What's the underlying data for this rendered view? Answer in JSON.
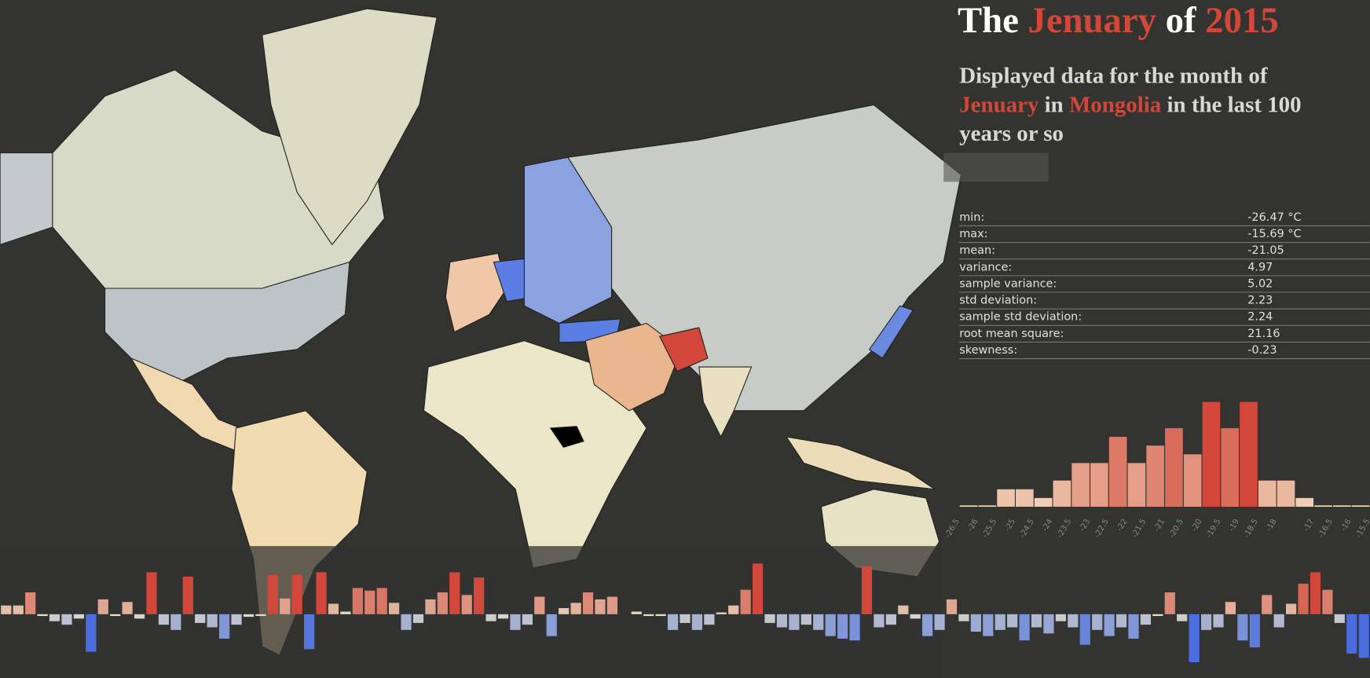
{
  "header": {
    "title": {
      "the": "The",
      "month": "Jenuary",
      "of": "of",
      "year": "2015"
    },
    "subtitle": {
      "lead": "Displayed data for the month of",
      "month": "Jenuary",
      "in": "in",
      "country": "Mongolia",
      "tail": "in the last 100 years or so"
    }
  },
  "stats": {
    "rows": [
      {
        "label": "min:",
        "value": "-26.47 °C"
      },
      {
        "label": "max:",
        "value": "-15.69 °C"
      },
      {
        "label": "mean:",
        "value": "-21.05"
      },
      {
        "label": "variance:",
        "value": "4.97"
      },
      {
        "label": "sample variance:",
        "value": "5.02"
      },
      {
        "label": "std deviation:",
        "value": "2.23"
      },
      {
        "label": "sample std deviation:",
        "value": "2.24"
      },
      {
        "label": "root mean square:",
        "value": "21.16"
      },
      {
        "label": "skewness:",
        "value": "-0.23"
      }
    ]
  },
  "chart_data": [
    {
      "type": "histogram",
      "bins": [
        -26.5,
        -26,
        -25.5,
        -25,
        -24.5,
        -24,
        -23.5,
        -23,
        -22.5,
        -22,
        -21.5,
        -21,
        -20.5,
        -20,
        -19.5,
        -19,
        -18.5,
        -18,
        -17.5,
        -17,
        -16.5,
        -16,
        -15.5
      ],
      "values": [
        0,
        0,
        2,
        2,
        1,
        3,
        5,
        5,
        8,
        5,
        7,
        9,
        6,
        12,
        9,
        12,
        3,
        3,
        1,
        0,
        0,
        0
      ],
      "ylim": [
        0,
        12
      ],
      "xticks": [
        -26.5,
        -26,
        -25.5,
        -25,
        -24.5,
        -24,
        -23.5,
        -23,
        -22.5,
        -22,
        -21.5,
        -21,
        -20.5,
        -20,
        -19.5,
        -19,
        -18.5,
        -18,
        -17,
        -16.5,
        -16,
        -15.5
      ],
      "colors": {
        "low": "#f2dcc0",
        "high": "#d2473a"
      }
    },
    {
      "type": "bar",
      "ylim": [
        -60,
        60
      ],
      "colors": {
        "cold": "#4a6ee0",
        "neutral": "#e8e2c8",
        "hot": "#d2473a"
      },
      "values": [
        10,
        10,
        25,
        0,
        -8,
        -12,
        -5,
        -43,
        17,
        0,
        14,
        -5,
        48,
        -12,
        -18,
        43,
        -10,
        -15,
        -28,
        -12,
        -3,
        -2,
        45,
        18,
        45,
        -40,
        48,
        12,
        3,
        30,
        27,
        30,
        13,
        -18,
        -10,
        17,
        25,
        48,
        22,
        42,
        -8,
        -5,
        -18,
        -12,
        20,
        -25,
        7,
        13,
        25,
        17,
        20,
        null,
        3,
        -2,
        0,
        -18,
        -10,
        -18,
        -12,
        2,
        10,
        28,
        58,
        -10,
        -15,
        -18,
        -12,
        -18,
        -25,
        -28,
        -30,
        55,
        -15,
        -12,
        10,
        -5,
        -25,
        -18,
        17,
        -8,
        -20,
        -25,
        -18,
        -15,
        -30,
        -15,
        -22,
        -8,
        -15,
        -35,
        -18,
        -25,
        -15,
        -28,
        -12,
        0,
        25,
        -8,
        -55,
        -18,
        -15,
        14,
        -30,
        -38,
        22,
        -15,
        12,
        35,
        48,
        28,
        -10,
        -45,
        -50
      ]
    }
  ]
}
